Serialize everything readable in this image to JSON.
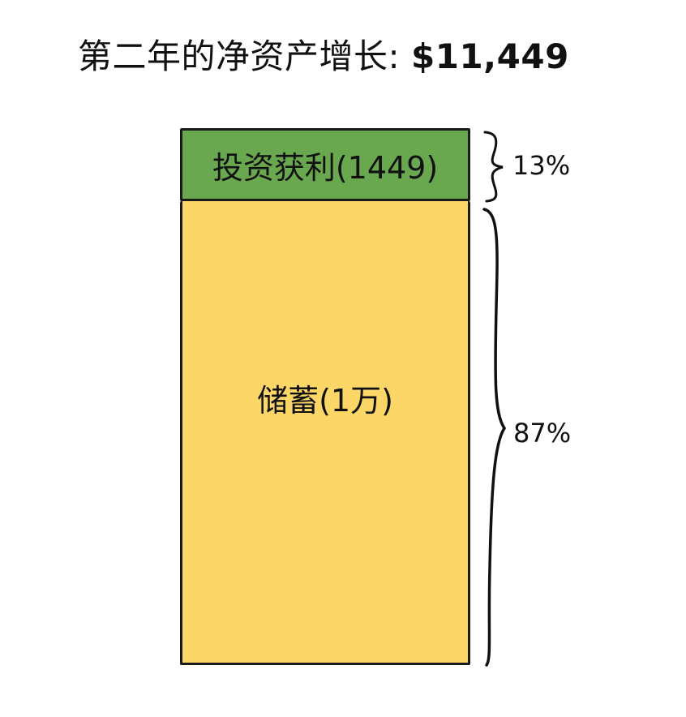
{
  "title": {
    "text": "第二年的净资产增长: ",
    "amount": "$11,449"
  },
  "segments": {
    "investment": {
      "label": "投资获利(1449)",
      "percent": "13%",
      "value": 1449,
      "color": "#6aa84f"
    },
    "savings": {
      "label": "储蓄(1万)",
      "percent": "87%",
      "value": 10000,
      "color": "#fcd667"
    }
  }
}
